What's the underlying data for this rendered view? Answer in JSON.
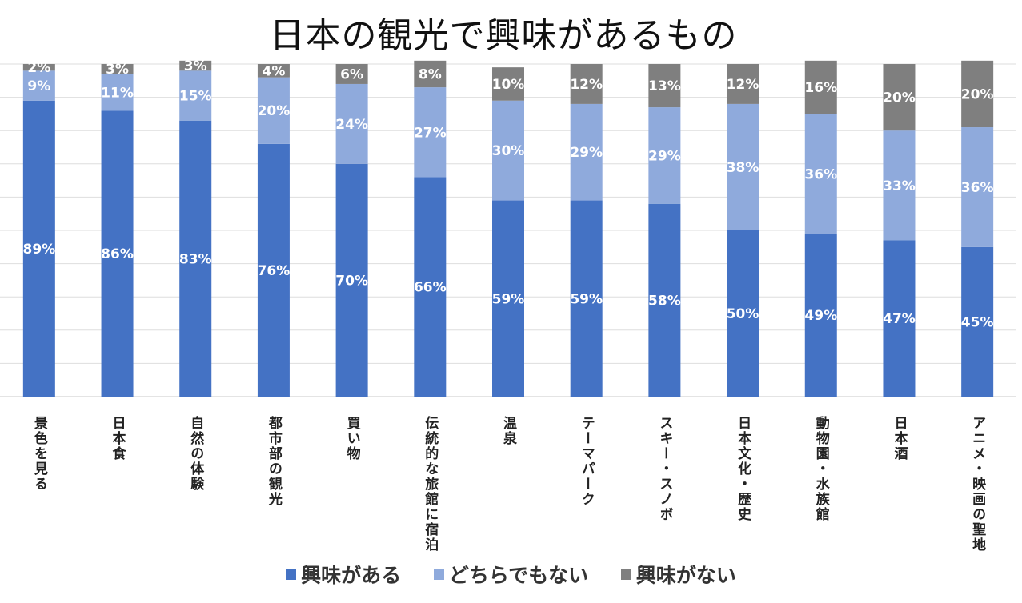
{
  "chart_data": {
    "type": "bar",
    "stacked": true,
    "title": "日本の観光で興味があるもの",
    "categories": [
      "景色を見る",
      "日本食",
      "自然の体験",
      "都市部の観光",
      "買い物",
      "伝統的な旅館に宿泊",
      "温泉",
      "テーマパーク",
      "スキー・スノボ",
      "日本文化・歴史",
      "動物園・水族館",
      "日本酒",
      "アニメ・映画の聖地"
    ],
    "series": [
      {
        "name": "興味がある",
        "color": "#4472c4",
        "values": [
          89,
          86,
          83,
          76,
          70,
          66,
          59,
          59,
          58,
          50,
          49,
          47,
          45
        ]
      },
      {
        "name": "どちらでもない",
        "color": "#8faadc",
        "values": [
          9,
          11,
          15,
          20,
          24,
          27,
          30,
          29,
          29,
          38,
          36,
          33,
          36
        ]
      },
      {
        "name": "興味がない",
        "color": "#7f7f7f",
        "values": [
          2,
          3,
          3,
          4,
          6,
          8,
          10,
          12,
          13,
          12,
          16,
          20,
          20
        ]
      }
    ],
    "ylim": [
      0,
      100
    ],
    "grid": true,
    "value_suffix": "%",
    "legend_position": "bottom"
  }
}
